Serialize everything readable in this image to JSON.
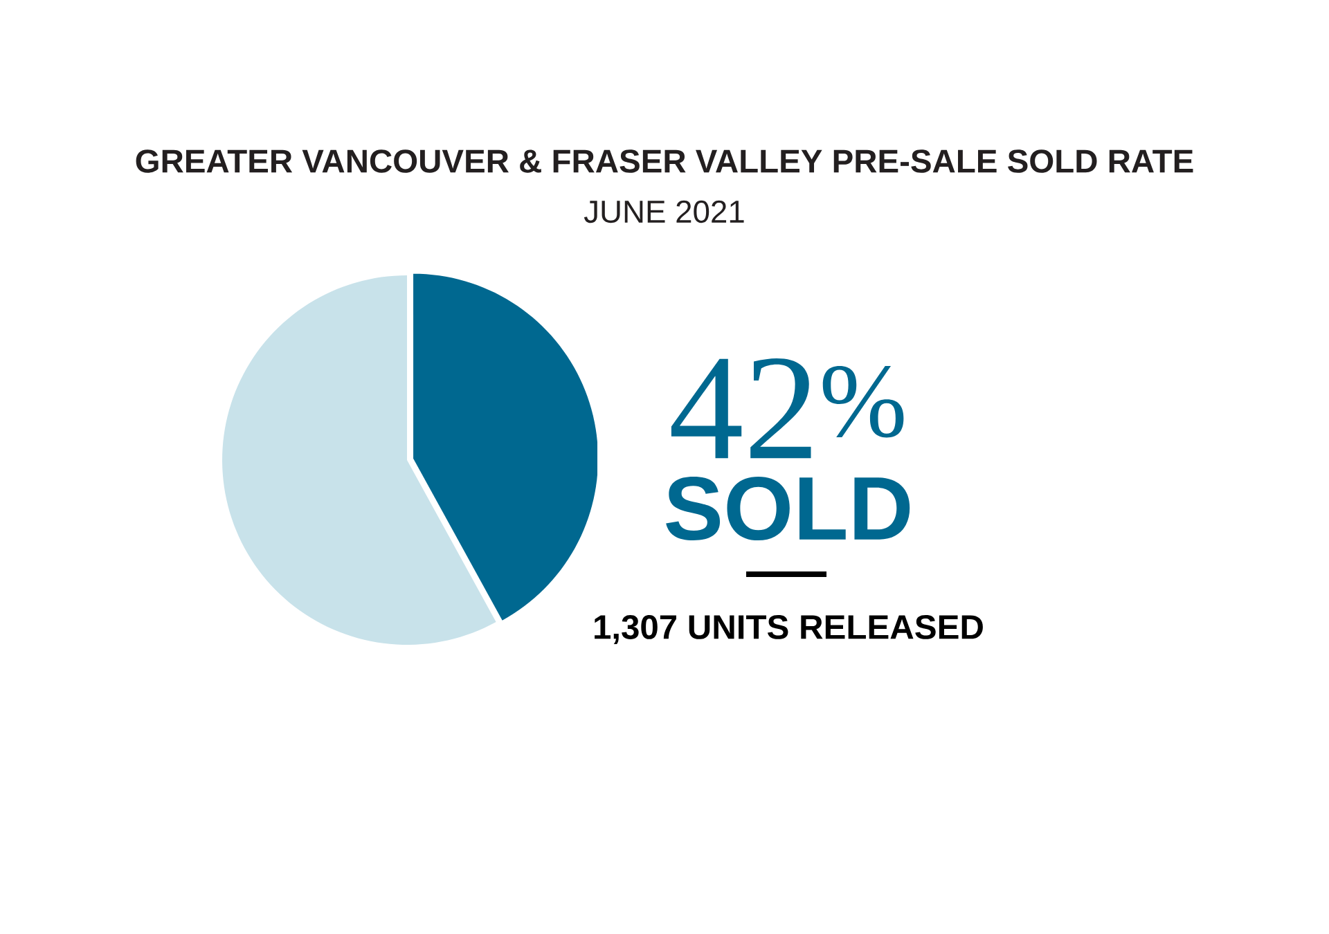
{
  "chart_data": {
    "type": "pie",
    "title": "GREATER VANCOUVER & FRASER VALLEY PRE-SALE SOLD RATE",
    "subtitle": "JUNE 2021",
    "categories": [
      "SOLD",
      null
    ],
    "values": [
      42,
      58
    ],
    "colors": [
      "#006890",
      "#c8e2ea"
    ],
    "value_labels": [
      "42$^{%}$",
      null
    ],
    "annotations": [
      "1,307 UNITS RELEASED"
    ]
  }
}
